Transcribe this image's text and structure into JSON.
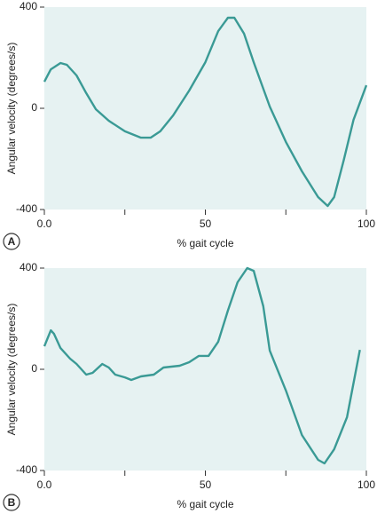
{
  "chart_data": [
    {
      "type": "line",
      "panel": "A",
      "xlabel": "% gait cycle",
      "ylabel": "Angular velocity (degrees/s)",
      "x": [
        0,
        2,
        5,
        7,
        10,
        13,
        16,
        20,
        25,
        30,
        33,
        36,
        40,
        45,
        50,
        54,
        57,
        59,
        62,
        65,
        70,
        75,
        80,
        85,
        88,
        90,
        93,
        96,
        100
      ],
      "series": [
        {
          "color": "#3a9a95",
          "values": [
            105,
            154,
            179,
            172,
            130,
            60,
            -4,
            -49,
            -91,
            -116,
            -116,
            -91,
            -28,
            70,
            182,
            305,
            358,
            358,
            295,
            182,
            7,
            -133,
            -249,
            -351,
            -386,
            -351,
            -204,
            -46,
            91
          ]
        }
      ],
      "xlim": [
        0,
        100
      ],
      "ylim": [
        -400,
        400
      ],
      "xticks": [
        {
          "value": 0,
          "label": "0.0"
        },
        50,
        100
      ],
      "xminor_ticks": [
        25,
        75
      ],
      "yticks": [
        -400,
        0,
        400
      ],
      "background": "#e6f2f2"
    },
    {
      "type": "line",
      "panel": "B",
      "xlabel": "% gait cycle",
      "ylabel": "Angular velocity (degrees/s)",
      "x": [
        0,
        2,
        3,
        5,
        8,
        10,
        13,
        15,
        18,
        20,
        22,
        25,
        27,
        30,
        34,
        37,
        42,
        45,
        48,
        51,
        54,
        57,
        60,
        63,
        65,
        68,
        70,
        75,
        80,
        85,
        87,
        90,
        94,
        98
      ],
      "series": [
        {
          "color": "#3a9a95",
          "values": [
            91,
            154,
            140,
            84,
            42,
            21,
            -21,
            -14,
            21,
            7,
            -21,
            -32,
            -42,
            -28,
            -21,
            7,
            14,
            28,
            53,
            53,
            109,
            232,
            344,
            400,
            389,
            249,
            74,
            -84,
            -260,
            -358,
            -372,
            -316,
            -189,
            77
          ]
        }
      ],
      "xlim": [
        0,
        100
      ],
      "ylim": [
        -400,
        400
      ],
      "xticks": [
        {
          "value": 0,
          "label": "0.0"
        },
        50,
        100
      ],
      "xminor_ticks": [
        25,
        75
      ],
      "yticks": [
        -400,
        0,
        400
      ],
      "background": "#e6f2f2"
    }
  ]
}
